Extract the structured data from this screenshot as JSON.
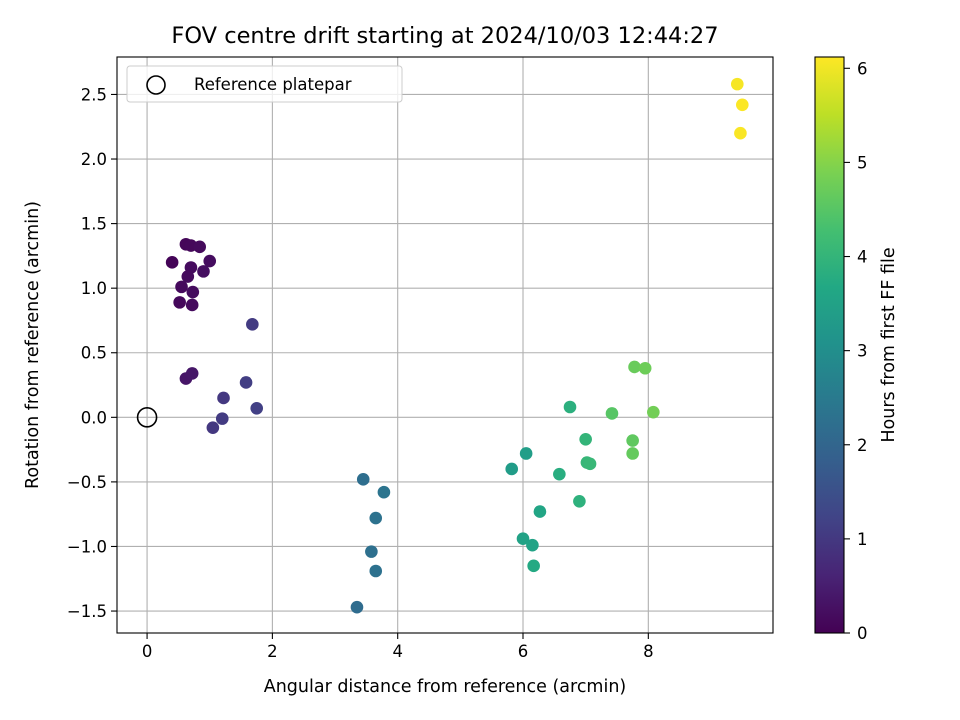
{
  "chart_data": {
    "type": "scatter",
    "title": "FOV centre drift starting at 2024/10/03 12:44:27",
    "xlabel": "Angular distance from reference (arcmin)",
    "ylabel": "Rotation from reference (arcmin)",
    "xlim": [
      -0.48,
      9.99
    ],
    "ylim": [
      -1.67,
      2.79
    ],
    "xticks": [
      0,
      2,
      4,
      6,
      8
    ],
    "xtick_labels": [
      "0",
      "2",
      "4",
      "6",
      "8"
    ],
    "yticks": [
      -1.5,
      -1.0,
      -0.5,
      0.0,
      0.5,
      1.0,
      1.5,
      2.0,
      2.5
    ],
    "ytick_labels": [
      "−1.5",
      "−1.0",
      "−0.5",
      "0.0",
      "0.5",
      "1.0",
      "1.5",
      "2.0",
      "2.5"
    ],
    "grid": true,
    "legend": {
      "position": "top-left",
      "entries": [
        "Reference platepar"
      ]
    },
    "reference_point": {
      "x": 0,
      "y": 0
    },
    "colorbar": {
      "label": "Hours from first FF file",
      "colormap": "viridis",
      "range": [
        0,
        6.12
      ],
      "ticks": [
        0,
        1,
        2,
        3,
        4,
        5,
        6
      ],
      "tick_labels": [
        "0",
        "1",
        "2",
        "3",
        "4",
        "5",
        "6"
      ]
    },
    "points": [
      {
        "x": 0.4,
        "y": 1.2,
        "c": 0.05
      },
      {
        "x": 0.62,
        "y": 1.34,
        "c": 0.1
      },
      {
        "x": 0.7,
        "y": 1.33,
        "c": 0.12
      },
      {
        "x": 0.84,
        "y": 1.32,
        "c": 0.15
      },
      {
        "x": 1.0,
        "y": 1.21,
        "c": 0.2
      },
      {
        "x": 0.7,
        "y": 1.16,
        "c": 0.18
      },
      {
        "x": 0.9,
        "y": 1.13,
        "c": 0.22
      },
      {
        "x": 0.65,
        "y": 1.09,
        "c": 0.17
      },
      {
        "x": 0.55,
        "y": 1.01,
        "c": 0.14
      },
      {
        "x": 0.73,
        "y": 0.97,
        "c": 0.19
      },
      {
        "x": 0.52,
        "y": 0.89,
        "c": 0.13
      },
      {
        "x": 0.72,
        "y": 0.87,
        "c": 0.16
      },
      {
        "x": 0.62,
        "y": 0.3,
        "c": 0.35
      },
      {
        "x": 0.72,
        "y": 0.34,
        "c": 0.38
      },
      {
        "x": 1.68,
        "y": 0.72,
        "c": 1.05
      },
      {
        "x": 1.58,
        "y": 0.27,
        "c": 1.1
      },
      {
        "x": 1.22,
        "y": 0.15,
        "c": 1.0
      },
      {
        "x": 1.75,
        "y": 0.07,
        "c": 1.15
      },
      {
        "x": 1.2,
        "y": -0.01,
        "c": 1.05
      },
      {
        "x": 1.05,
        "y": -0.08,
        "c": 1.0
      },
      {
        "x": 3.45,
        "y": -0.48,
        "c": 2.2
      },
      {
        "x": 3.78,
        "y": -0.58,
        "c": 2.35
      },
      {
        "x": 3.65,
        "y": -0.78,
        "c": 2.3
      },
      {
        "x": 3.58,
        "y": -1.04,
        "c": 2.25
      },
      {
        "x": 3.65,
        "y": -1.19,
        "c": 2.28
      },
      {
        "x": 3.35,
        "y": -1.47,
        "c": 2.15
      },
      {
        "x": 6.75,
        "y": 0.08,
        "c": 3.85
      },
      {
        "x": 6.05,
        "y": -0.28,
        "c": 3.4
      },
      {
        "x": 5.82,
        "y": -0.4,
        "c": 3.35
      },
      {
        "x": 6.58,
        "y": -0.44,
        "c": 3.8
      },
      {
        "x": 7.0,
        "y": -0.17,
        "c": 4.0
      },
      {
        "x": 7.02,
        "y": -0.35,
        "c": 4.05
      },
      {
        "x": 7.07,
        "y": -0.36,
        "c": 4.08
      },
      {
        "x": 6.9,
        "y": -0.65,
        "c": 3.9
      },
      {
        "x": 6.27,
        "y": -0.73,
        "c": 3.6
      },
      {
        "x": 6.0,
        "y": -0.94,
        "c": 3.5
      },
      {
        "x": 6.15,
        "y": -0.99,
        "c": 3.55
      },
      {
        "x": 6.17,
        "y": -1.15,
        "c": 3.7
      },
      {
        "x": 7.42,
        "y": 0.03,
        "c": 4.5
      },
      {
        "x": 7.78,
        "y": 0.39,
        "c": 4.7
      },
      {
        "x": 7.95,
        "y": 0.38,
        "c": 4.75
      },
      {
        "x": 8.08,
        "y": 0.04,
        "c": 4.8
      },
      {
        "x": 7.75,
        "y": -0.18,
        "c": 4.6
      },
      {
        "x": 7.75,
        "y": -0.28,
        "c": 4.65
      },
      {
        "x": 9.42,
        "y": 2.58,
        "c": 6.05
      },
      {
        "x": 9.5,
        "y": 2.42,
        "c": 6.1
      },
      {
        "x": 9.47,
        "y": 2.2,
        "c": 6.08
      }
    ]
  }
}
